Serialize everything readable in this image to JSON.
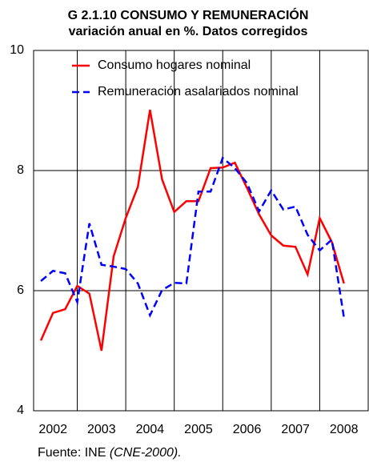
{
  "chart_data": {
    "type": "line",
    "title": "G 2.1.10 CONSUMO Y REMUNERACIÓN",
    "subtitle": "variación anual en %. Datos corregidos",
    "x": [
      2002.25,
      2002.5,
      2002.75,
      2003,
      2003.25,
      2003.5,
      2003.75,
      2004,
      2004.25,
      2004.5,
      2004.75,
      2005,
      2005.25,
      2005.5,
      2005.75,
      2006,
      2006.25,
      2006.5,
      2006.75,
      2007,
      2007.25,
      2007.5,
      2007.75,
      2008,
      2008.25,
      2008.5
    ],
    "series": [
      {
        "name": "Consumo hogares nominal",
        "color": "#ff0000",
        "dash": false,
        "values": [
          5.17,
          5.63,
          5.69,
          6.08,
          5.95,
          5.0,
          6.57,
          7.21,
          7.73,
          9.01,
          7.85,
          7.31,
          7.49,
          7.49,
          8.04,
          8.05,
          8.13,
          7.71,
          7.27,
          6.92,
          6.75,
          6.73,
          6.27,
          7.21,
          6.81,
          6.12
        ]
      },
      {
        "name": "Remuneración asalariados nominal",
        "color": "#0000ff",
        "dash": true,
        "values": [
          6.16,
          6.33,
          6.29,
          5.81,
          7.12,
          6.43,
          6.4,
          6.36,
          6.12,
          5.59,
          6.01,
          6.13,
          6.12,
          7.65,
          7.65,
          8.21,
          8.04,
          7.79,
          7.32,
          7.67,
          7.35,
          7.4,
          6.93,
          6.67,
          6.85,
          5.55
        ]
      }
    ],
    "xlim": [
      2002.1,
      2009
    ],
    "xticks": [
      {
        "value": 2002.5,
        "label": "2002"
      },
      {
        "value": 2003.5,
        "label": "2003"
      },
      {
        "value": 2004.5,
        "label": "2004"
      },
      {
        "value": 2005.5,
        "label": "2005"
      },
      {
        "value": 2006.5,
        "label": "2006"
      },
      {
        "value": 2007.5,
        "label": "2007"
      },
      {
        "value": 2008.5,
        "label": "2008"
      }
    ],
    "xgrid": [
      2003,
      2004,
      2005,
      2006,
      2007,
      2008
    ],
    "ylim": [
      4,
      10
    ],
    "yticks": [
      4,
      6,
      8,
      10
    ],
    "grid": true,
    "source": "Fuente: INE",
    "source_note": "(CNE-2000)."
  }
}
